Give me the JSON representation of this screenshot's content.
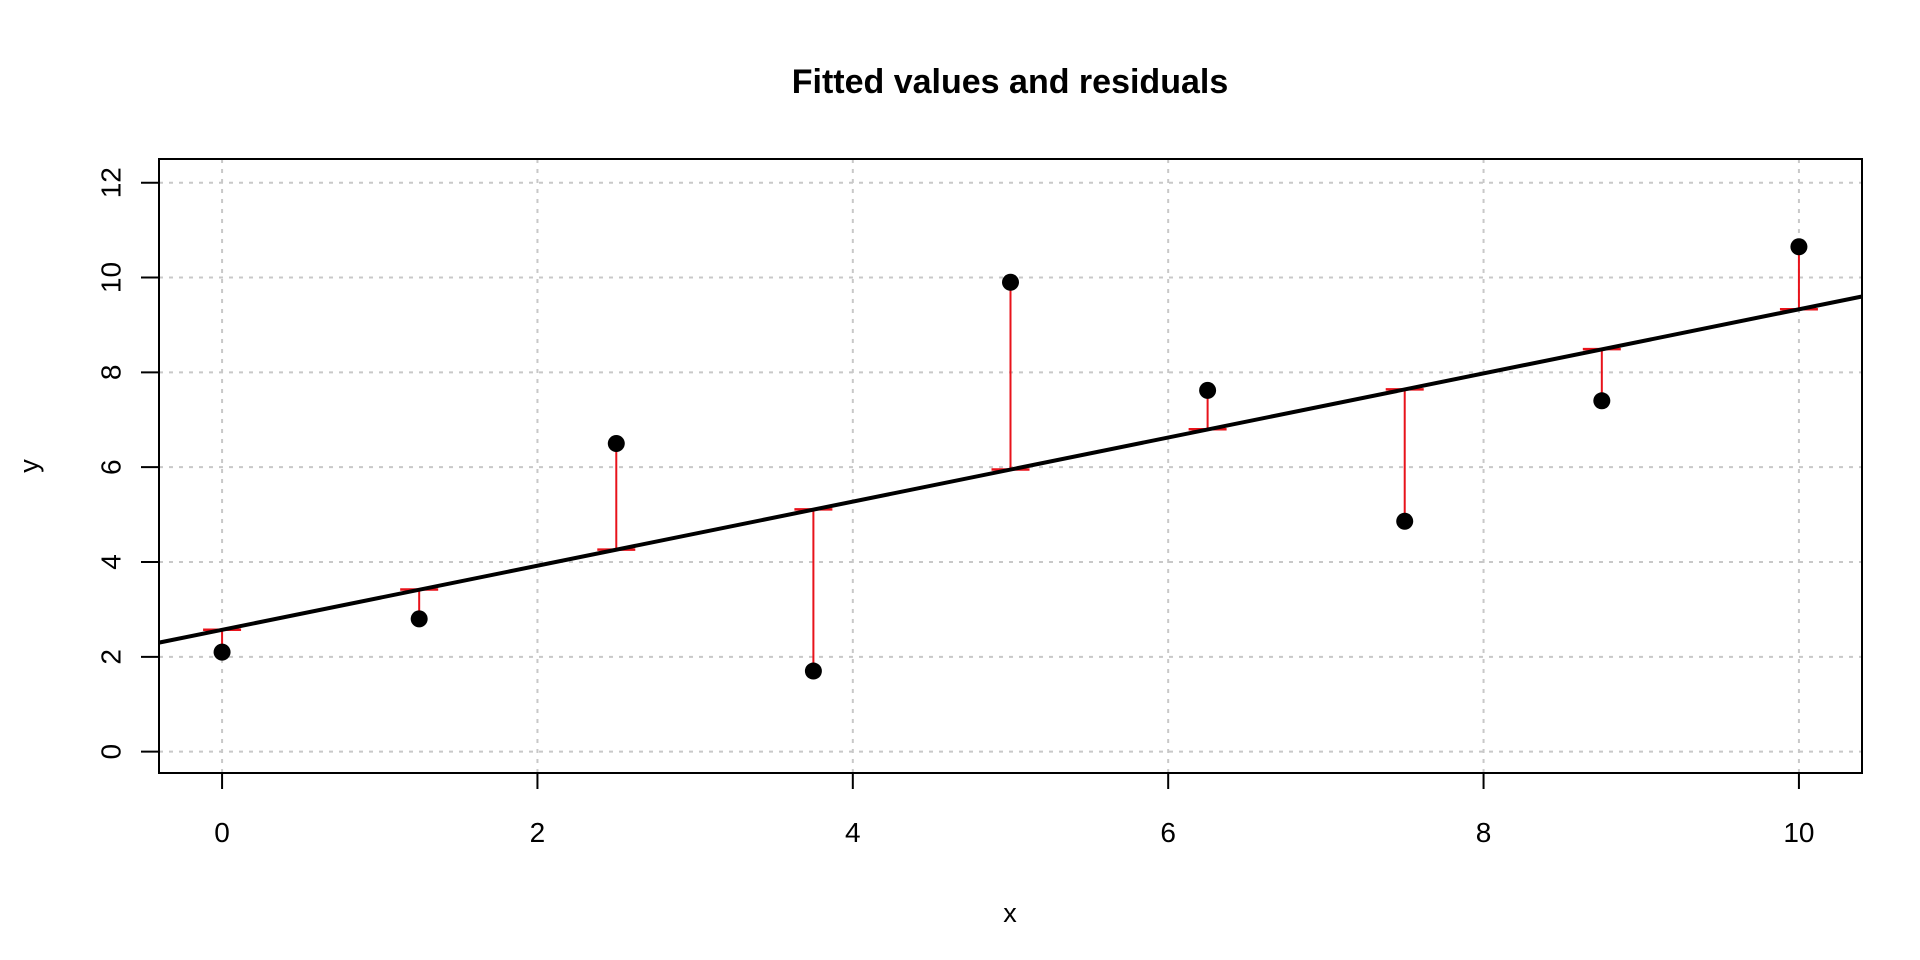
{
  "chart_data": {
    "type": "scatter",
    "title": "Fitted values and residuals",
    "xlabel": "x",
    "ylabel": "y",
    "xlim": [
      -0.4,
      10.4
    ],
    "ylim": [
      -0.45,
      12.5
    ],
    "xticks": [
      0,
      2,
      4,
      6,
      8,
      10
    ],
    "yticks": [
      0,
      2,
      4,
      6,
      8,
      10,
      12
    ],
    "grid": true,
    "fit": {
      "intercept": 2.57,
      "slope": 0.676
    },
    "points": [
      {
        "x": 0,
        "y": 2.1,
        "fitted": 2.57
      },
      {
        "x": 1.25,
        "y": 2.8,
        "fitted": 3.42
      },
      {
        "x": 2.5,
        "y": 6.5,
        "fitted": 4.26
      },
      {
        "x": 3.75,
        "y": 1.7,
        "fitted": 5.11
      },
      {
        "x": 5,
        "y": 9.9,
        "fitted": 5.95
      },
      {
        "x": 6.25,
        "y": 7.62,
        "fitted": 6.8
      },
      {
        "x": 7.5,
        "y": 4.86,
        "fitted": 7.64
      },
      {
        "x": 8.75,
        "y": 7.4,
        "fitted": 8.49
      },
      {
        "x": 10,
        "y": 10.65,
        "fitted": 9.33
      }
    ],
    "colors": {
      "points": "#000000",
      "fit_line": "#000000",
      "residuals": "#e8131b",
      "grid": "#c8c8c8"
    }
  }
}
